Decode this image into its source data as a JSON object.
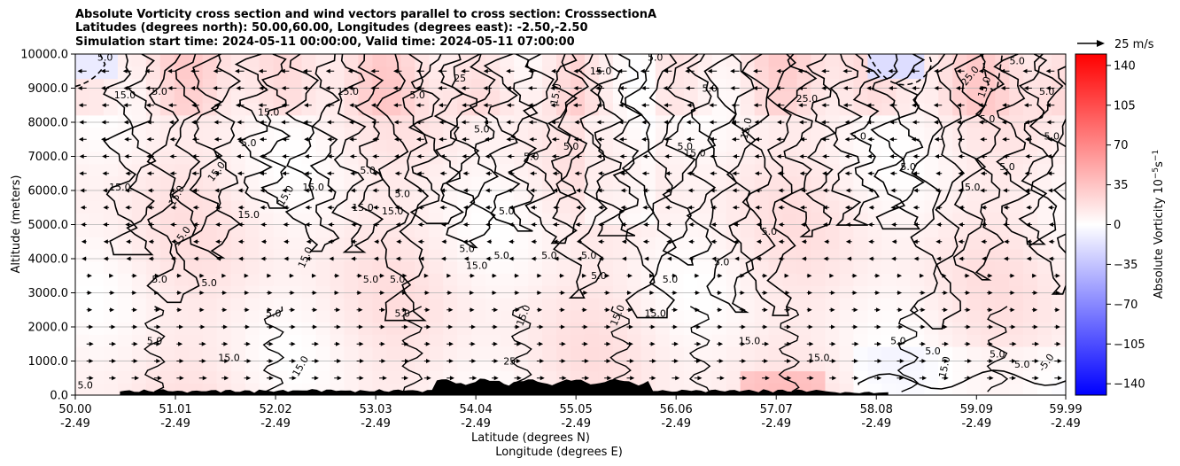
{
  "chart_data": {
    "type": "heatmap",
    "title_lines": [
      "Absolute Vorticity cross section and wind vectors parallel to cross section: CrosssectionA",
      "Latitudes (degrees north): 50.00,60.00, Longitudes (degrees east): -2.50,-2.50",
      "Simulation start time: 2024-05-11 00:00:00, Valid time: 2024-05-11 07:00:00"
    ],
    "ylabel": "Altitude (meters)",
    "xlabel_line1": "Latitude (degrees N)",
    "xlabel_line2": "Longitude (degrees E)",
    "xlim": [
      50.0,
      59.99
    ],
    "ylim": [
      0,
      10000
    ],
    "x_ticks": [
      {
        "lat": "50.00",
        "lon": "-2.49",
        "value": 50.0
      },
      {
        "lat": "51.01",
        "lon": "-2.49",
        "value": 51.01
      },
      {
        "lat": "52.02",
        "lon": "-2.49",
        "value": 52.02
      },
      {
        "lat": "53.03",
        "lon": "-2.49",
        "value": 53.03
      },
      {
        "lat": "54.04",
        "lon": "-2.49",
        "value": 54.04
      },
      {
        "lat": "55.05",
        "lon": "-2.49",
        "value": 55.05
      },
      {
        "lat": "56.06",
        "lon": "-2.49",
        "value": 56.06
      },
      {
        "lat": "57.07",
        "lon": "-2.49",
        "value": 57.07
      },
      {
        "lat": "58.08",
        "lon": "-2.49",
        "value": 58.08
      },
      {
        "lat": "59.09",
        "lon": "-2.49",
        "value": 59.09
      },
      {
        "lat": "59.99",
        "lon": "-2.49",
        "value": 59.99
      }
    ],
    "y_ticks": [
      {
        "label": "0.0",
        "value": 0
      },
      {
        "label": "1000.0",
        "value": 1000
      },
      {
        "label": "2000.0",
        "value": 2000
      },
      {
        "label": "3000.0",
        "value": 3000
      },
      {
        "label": "4000.0",
        "value": 4000
      },
      {
        "label": "5000.0",
        "value": 5000
      },
      {
        "label": "6000.0",
        "value": 6000
      },
      {
        "label": "7000.0",
        "value": 7000
      },
      {
        "label": "8000.0",
        "value": 8000
      },
      {
        "label": "9000.0",
        "value": 9000
      },
      {
        "label": "10000.0",
        "value": 10000
      }
    ],
    "grid_horizontal": true,
    "colorbar": {
      "label": "Absolute Vorticity 10",
      "label_exponent": "−5",
      "label_unit": "s",
      "label_unit_exponent": "−1",
      "range": [
        -150,
        150
      ],
      "colormap": "bwr",
      "colors": [
        "#0000ff",
        "#ffffff",
        "#ff0000"
      ],
      "ticks": [
        {
          "label": "140",
          "value": 140
        },
        {
          "label": "105",
          "value": 105
        },
        {
          "label": "70",
          "value": 70
        },
        {
          "label": "35",
          "value": 35
        },
        {
          "label": "0",
          "value": 0
        },
        {
          "label": "−35",
          "value": -35
        },
        {
          "label": "−70",
          "value": -70
        },
        {
          "label": "−105",
          "value": -105
        },
        {
          "label": "−140",
          "value": -140
        }
      ]
    },
    "quiver_key": {
      "label": "25 m/s",
      "value": 25
    },
    "contour_labels": [
      {
        "text": "5.0",
        "x": 50.1,
        "y": 200
      },
      {
        "text": "15.0",
        "x": 50.5,
        "y": 8700
      },
      {
        "text": "5.0",
        "x": 50.85,
        "y": 8800
      },
      {
        "text": "15.0",
        "x": 50.45,
        "y": 6000
      },
      {
        "text": "15.0",
        "x": 51.05,
        "y": 5800
      },
      {
        "text": "15.0",
        "x": 51.1,
        "y": 4600
      },
      {
        "text": "5.0",
        "x": 50.85,
        "y": 3300
      },
      {
        "text": "5.0",
        "x": 51.35,
        "y": 3200
      },
      {
        "text": "5.0",
        "x": 50.8,
        "y": 1500
      },
      {
        "text": "15.0",
        "x": 51.55,
        "y": 1000
      },
      {
        "text": "15.0",
        "x": 51.95,
        "y": 8200
      },
      {
        "text": "5.0",
        "x": 51.75,
        "y": 7300
      },
      {
        "text": "15.0",
        "x": 51.45,
        "y": 6500
      },
      {
        "text": "15.0",
        "x": 52.15,
        "y": 5800
      },
      {
        "text": "15.0",
        "x": 51.75,
        "y": 5200
      },
      {
        "text": "15.0",
        "x": 52.4,
        "y": 6000
      },
      {
        "text": "15.0",
        "x": 52.35,
        "y": 4000
      },
      {
        "text": "5.0",
        "x": 52.0,
        "y": 2300
      },
      {
        "text": "15.0",
        "x": 52.3,
        "y": 800
      },
      {
        "text": "15.0",
        "x": 52.75,
        "y": 8800
      },
      {
        "text": "5.0",
        "x": 52.95,
        "y": 6500
      },
      {
        "text": "15.0",
        "x": 52.9,
        "y": 5400
      },
      {
        "text": "15.0",
        "x": 53.2,
        "y": 5300
      },
      {
        "text": "5.0",
        "x": 53.3,
        "y": 5800
      },
      {
        "text": "5.0",
        "x": 52.98,
        "y": 3300
      },
      {
        "text": "5.0",
        "x": 53.25,
        "y": 3300
      },
      {
        "text": "5.0",
        "x": 53.3,
        "y": 2300
      },
      {
        "text": "5.0",
        "x": 53.45,
        "y": 8700
      },
      {
        "text": "25",
        "x": 53.88,
        "y": 9200
      },
      {
        "text": "5.0",
        "x": 54.1,
        "y": 7700
      },
      {
        "text": "5.0",
        "x": 53.95,
        "y": 4200
      },
      {
        "text": "5.0",
        "x": 54.3,
        "y": 4000
      },
      {
        "text": "15.0",
        "x": 54.05,
        "y": 3700
      },
      {
        "text": "5.0",
        "x": 54.35,
        "y": 5300
      },
      {
        "text": "15.0",
        "x": 54.55,
        "y": 2300
      },
      {
        "text": "25",
        "x": 54.38,
        "y": 900
      },
      {
        "text": "5.0",
        "x": 54.6,
        "y": 6900
      },
      {
        "text": "5.0",
        "x": 55.0,
        "y": 7200
      },
      {
        "text": "5.0",
        "x": 54.78,
        "y": 4000
      },
      {
        "text": "5.0",
        "x": 55.18,
        "y": 4000
      },
      {
        "text": "5.0",
        "x": 55.28,
        "y": 3400
      },
      {
        "text": "15.0",
        "x": 54.88,
        "y": 8800
      },
      {
        "text": "15.0",
        "x": 55.5,
        "y": 2300
      },
      {
        "text": "5.0",
        "x": 56.15,
        "y": 7200
      },
      {
        "text": "15.0",
        "x": 56.25,
        "y": 7000
      },
      {
        "text": "5.0",
        "x": 56.0,
        "y": 3300
      },
      {
        "text": "15.0",
        "x": 55.85,
        "y": 2300
      },
      {
        "text": "5.0",
        "x": 56.52,
        "y": 3800
      },
      {
        "text": "5.0",
        "x": 56.4,
        "y": 8900
      },
      {
        "text": "15.0",
        "x": 56.8,
        "y": 7800
      },
      {
        "text": "25.0",
        "x": 57.38,
        "y": 8600
      },
      {
        "text": "5.0",
        "x": 57.0,
        "y": 4700
      },
      {
        "text": "15.0",
        "x": 56.8,
        "y": 1500
      },
      {
        "text": "15.0",
        "x": 57.5,
        "y": 1000
      },
      {
        "text": "5.0",
        "x": 57.9,
        "y": 7500
      },
      {
        "text": "5.0",
        "x": 58.4,
        "y": 6600
      },
      {
        "text": "25.0",
        "x": 59.05,
        "y": 9300
      },
      {
        "text": "15.0",
        "x": 59.2,
        "y": 9000
      },
      {
        "text": "5.0",
        "x": 59.2,
        "y": 8000
      },
      {
        "text": "5.0",
        "x": 59.4,
        "y": 6600
      },
      {
        "text": "5.0",
        "x": 59.05,
        "y": 6000
      },
      {
        "text": "5.0",
        "x": 58.3,
        "y": 1500
      },
      {
        "text": "5.0",
        "x": 58.65,
        "y": 1200
      },
      {
        "text": "15.0",
        "x": 58.8,
        "y": 800
      },
      {
        "text": "5.0",
        "x": 59.3,
        "y": 1100
      },
      {
        "text": "5.0",
        "x": 59.55,
        "y": 800
      },
      {
        "text": "-5.0",
        "x": 59.82,
        "y": 900
      },
      {
        "text": "5.0",
        "x": 59.8,
        "y": 8800
      },
      {
        "text": "5.0",
        "x": 59.85,
        "y": 7500
      },
      {
        "text": "5.0",
        "x": 59.5,
        "y": 9700
      },
      {
        "text": "5.0",
        "x": 55.85,
        "y": 9800
      },
      {
        "text": "15.0",
        "x": 55.3,
        "y": 9400
      },
      {
        "text": "5.0",
        "x": 50.3,
        "y": 9800
      }
    ]
  }
}
